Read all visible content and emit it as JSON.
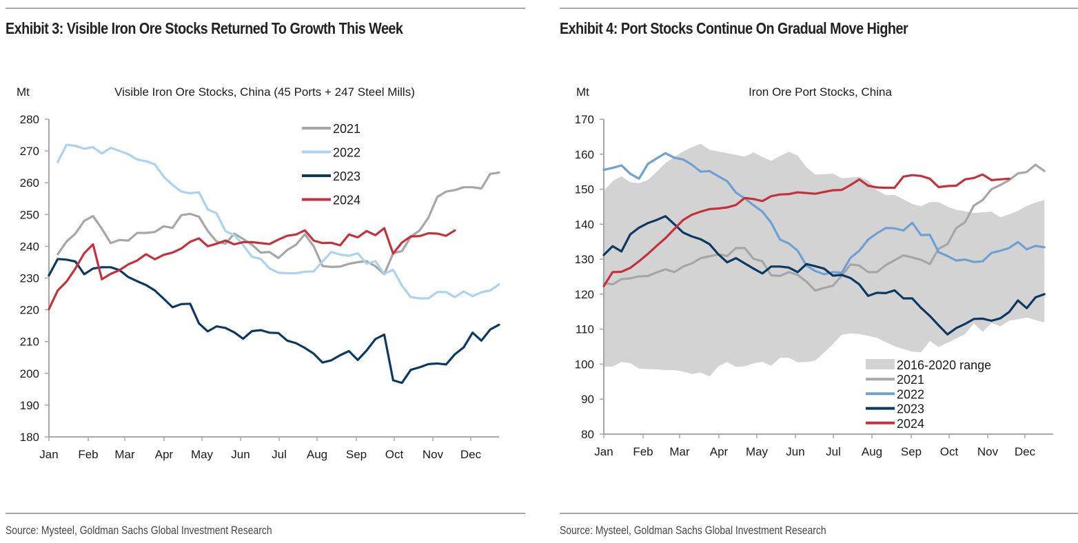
{
  "exhibits": [
    {
      "title": "Exhibit 3: Visible Iron Ore Stocks Returned To Growth This Week",
      "source": "Source: Mysteel, Goldman Sachs Global Investment Research"
    },
    {
      "title": "Exhibit 4: Port Stocks Continue On Gradual Move Higher",
      "source": "Source: Mysteel, Goldman Sachs Global Investment Research"
    }
  ],
  "chart_data": [
    {
      "type": "line",
      "title": "Visible Iron Ore Stocks, China (45 Ports + 247 Steel Mills)",
      "ylabel": "Mt",
      "xlabel": "",
      "ylim": [
        180,
        280
      ],
      "yticks": [
        180,
        190,
        200,
        210,
        220,
        230,
        240,
        250,
        260,
        270,
        280
      ],
      "categories": [
        "Jan",
        "Feb",
        "Mar",
        "Apr",
        "May",
        "Jun",
        "Jul",
        "Aug",
        "Sep",
        "Oct",
        "Nov",
        "Dec"
      ],
      "x_unit": "week of year (0-51)",
      "legend_position": "top-right",
      "grid": false,
      "series": [
        {
          "name": "2021",
          "color": "#a6a6a6",
          "start_week": 1,
          "values": [
            237.5,
            241.5,
            244,
            248,
            249.5,
            245.5,
            241,
            242,
            241.8,
            244.2,
            244.2,
            244.5,
            246.3,
            245.8,
            249.8,
            250.2,
            249.3,
            244.8,
            241.5,
            240.8,
            244,
            242.3,
            240.5,
            238,
            238.2,
            236.3,
            238.8,
            240.5,
            243.8,
            240,
            233.8,
            233.5,
            233.6,
            234.5,
            235,
            235.3,
            233.7,
            231.2,
            237.8,
            238.5,
            243,
            245,
            249,
            255.5,
            257.2,
            257.7,
            258.6,
            258.6,
            258.2,
            262.8,
            263.2
          ]
        },
        {
          "name": "2022",
          "color": "#a9d3f1",
          "start_week": 1,
          "values": [
            266.5,
            272,
            271.6,
            270.7,
            271.2,
            269.2,
            271,
            270,
            269,
            267.3,
            266.8,
            265.8,
            261.9,
            259.3,
            257.2,
            256.7,
            257,
            251.6,
            250.4,
            244.8,
            243.5,
            240.4,
            236.7,
            236,
            233,
            231.7,
            231.5,
            231.5,
            232,
            232.1,
            235.2,
            238.2,
            237.4,
            237,
            237.8,
            234.5,
            235.3,
            231.3,
            232.6,
            227.6,
            224,
            223.6,
            223.6,
            225.6,
            225.6,
            224,
            225.8,
            224.3,
            225.5,
            226.1,
            228
          ]
        },
        {
          "name": "2023",
          "color": "#0b3963",
          "start_week": 0,
          "values": [
            230.8,
            236,
            235.8,
            235.2,
            231.2,
            233,
            233.4,
            233.4,
            232.5,
            230.3,
            229,
            227.8,
            226.1,
            223.5,
            220.8,
            221.8,
            221.9,
            215.7,
            213.2,
            214.8,
            214.3,
            212.9,
            210.9,
            213.3,
            213.6,
            212.8,
            212.7,
            210.3,
            209.5,
            208,
            206.2,
            203.4,
            204.1,
            205.7,
            207,
            204.2,
            207.2,
            210.8,
            212.2,
            197.8,
            197,
            201.1,
            201.9,
            202.9,
            203.1,
            202.8,
            206,
            208.2,
            212.8,
            210.3,
            213.8,
            215.3
          ]
        },
        {
          "name": "2024",
          "color": "#c6303a",
          "start_week": 0,
          "values": [
            220.2,
            226.1,
            228.9,
            233,
            237.8,
            240.6,
            229.6,
            231.3,
            232.5,
            234.3,
            235.5,
            237.5,
            235.9,
            237.3,
            238,
            239.3,
            241.4,
            242.5,
            240,
            240.8,
            241.8,
            240.6,
            241.3,
            241.3,
            241,
            240.7,
            242.1,
            243.3,
            243.7,
            245,
            241.8,
            241,
            241.1,
            240.3,
            243.7,
            242.8,
            244.8,
            243.5,
            245.7,
            237.7,
            241.2,
            243.1,
            243.2,
            244.1,
            244,
            243.3,
            245
          ]
        }
      ]
    },
    {
      "type": "line",
      "title": "Iron Ore Port Stocks, China",
      "ylabel": "Mt",
      "xlabel": "",
      "ylim": [
        80,
        170
      ],
      "yticks": [
        80,
        90,
        100,
        110,
        120,
        130,
        140,
        150,
        160,
        170
      ],
      "categories": [
        "Jan",
        "Feb",
        "Mar",
        "Apr",
        "May",
        "Jun",
        "Jul",
        "Aug",
        "Sep",
        "Oct",
        "Nov",
        "Dec"
      ],
      "x_unit": "week of year (0-51)",
      "legend_position": "bottom-right",
      "grid": false,
      "range_band": {
        "name": "2016-2020 range",
        "color": "#d3d3d3",
        "upper": [
          149.5,
          152.3,
          153.7,
          152,
          151.7,
          152.6,
          155,
          157.5,
          159.2,
          160.8,
          162,
          163,
          161.3,
          160.8,
          160.3,
          159.8,
          159.3,
          160.5,
          159.2,
          158.1,
          159.5,
          160.7,
          159.6,
          156.3,
          154.2,
          154.3,
          154.5,
          153.1,
          153.3,
          153.5,
          152.5,
          149.7,
          148.3,
          148.4,
          147.1,
          145.8,
          145.1,
          146.3,
          146.3,
          145,
          144.1,
          143.7,
          143.2,
          143.4,
          143.6,
          142,
          142.8,
          143.8,
          145.2,
          146.2,
          146.9
        ],
        "lower": [
          99.3,
          99.3,
          100.6,
          100.3,
          98.7,
          98.6,
          98.5,
          98.3,
          98.3,
          97.9,
          97.2,
          97.6,
          96.5,
          99.4,
          100.6,
          99.2,
          99.4,
          100.2,
          100.7,
          99.5,
          101.8,
          101.8,
          100.5,
          100.6,
          101,
          103.3,
          105.7,
          108.4,
          108.8,
          108.6,
          108.1,
          107.5,
          106.3,
          105.1,
          104.3,
          103.6,
          103.4,
          106.6,
          104.9,
          106.1,
          107.3,
          108.6,
          111.6,
          109.2,
          111.7,
          110.8,
          112.4,
          112.8,
          113.3,
          112.6,
          111.9
        ]
      },
      "series": [
        {
          "name": "2021",
          "color": "#a6a6a6",
          "start_week": 0,
          "values": [
            123.2,
            122.8,
            124.3,
            124.5,
            125.1,
            125.2,
            126.2,
            127.1,
            126.3,
            127.9,
            128.8,
            130.3,
            130.8,
            131.4,
            130.9,
            133.2,
            133.2,
            130.1,
            129.4,
            125.4,
            125.2,
            126.3,
            125.5,
            123.6,
            121,
            121.8,
            122.4,
            125.3,
            128.5,
            128.2,
            126.3,
            126.3,
            128.3,
            129.7,
            131.1,
            130.5,
            129.8,
            128.6,
            133,
            134.3,
            138.9,
            140.6,
            145.3,
            146.9,
            150,
            151.2,
            152.6,
            154.5,
            154.9,
            157,
            155.2
          ]
        },
        {
          "name": "2022",
          "color": "#6fa0d3",
          "start_week": 0,
          "values": [
            155.5,
            156.1,
            156.8,
            154.4,
            153,
            157.2,
            158.8,
            160.3,
            159,
            158.5,
            157,
            155,
            155.2,
            153.7,
            152.3,
            149,
            147.4,
            145.4,
            143.6,
            140.4,
            135.6,
            134.5,
            132.4,
            128.2,
            126.6,
            125.7,
            126.3,
            126.1,
            130.4,
            132.4,
            135.6,
            137.4,
            138.9,
            138.8,
            138.2,
            140.4,
            136.9,
            137,
            132,
            130.9,
            129.6,
            129.9,
            129.2,
            129.4,
            131.8,
            132.4,
            133.2,
            134.9,
            132.8,
            133.8,
            133.4
          ]
        },
        {
          "name": "2023",
          "color": "#0b3963",
          "start_week": 0,
          "values": [
            131.2,
            133.7,
            132.2,
            137.1,
            139,
            140.3,
            141.2,
            142.3,
            140,
            137.6,
            136.5,
            135.7,
            134.3,
            131.4,
            129.1,
            130.3,
            128.8,
            127.3,
            125.9,
            127.9,
            127.9,
            127.6,
            126.3,
            128.6,
            128,
            127.3,
            125.3,
            125.5,
            124.6,
            122.8,
            119.5,
            120.4,
            120.3,
            121.1,
            118.8,
            118.8,
            116.1,
            113.8,
            111.1,
            108.5,
            110.3,
            111.5,
            112.9,
            113,
            112.4,
            113.1,
            114.9,
            118.2,
            116,
            119.1,
            120
          ]
        },
        {
          "name": "2024",
          "color": "#c6303a",
          "start_week": 0,
          "values": [
            122.3,
            126.3,
            126.4,
            127.5,
            129.4,
            131.5,
            133.8,
            136,
            138.6,
            141.2,
            142.7,
            143.6,
            144.3,
            144.5,
            144.8,
            145.5,
            147.5,
            147.2,
            146.6,
            148,
            148.5,
            148.6,
            149.1,
            148.9,
            148.7,
            149.2,
            149.7,
            149.8,
            151.2,
            152.8,
            151,
            150.5,
            150.4,
            150.4,
            153.6,
            154,
            153.8,
            153,
            150.6,
            150.9,
            151,
            152.8,
            153.2,
            154.2,
            152.6,
            152.8,
            153
          ]
        }
      ]
    }
  ]
}
